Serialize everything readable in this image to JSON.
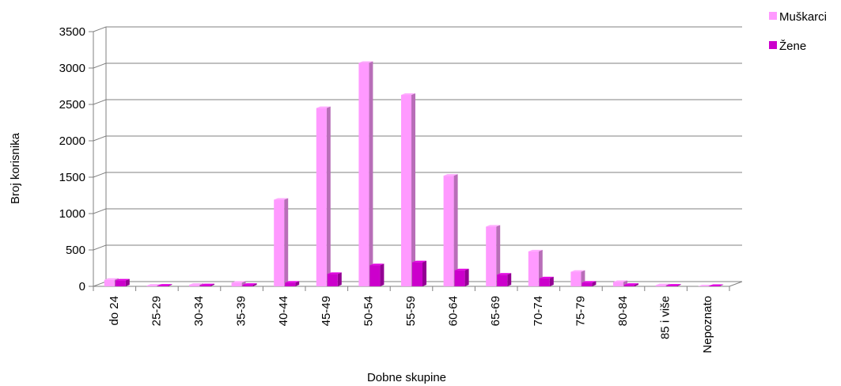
{
  "chart_data": {
    "type": "bar",
    "xlabel": "Dobne skupine",
    "ylabel": "Broj korisnika",
    "ylim": [
      0,
      3500
    ],
    "yticks": [
      0,
      500,
      1000,
      1500,
      2000,
      2500,
      3000,
      3500
    ],
    "grid": true,
    "legend_position": "top-right",
    "categories": [
      "do 24",
      "25-29",
      "30-34",
      "35-39",
      "40-44",
      "45-49",
      "50-54",
      "55-59",
      "60-64",
      "65-69",
      "70-74",
      "75-79",
      "80-84",
      "85 i više",
      "Nepoznato"
    ],
    "series": [
      {
        "name": "Muškarci",
        "color": "#ff99ff",
        "values": [
          90,
          10,
          20,
          50,
          1190,
          2450,
          3070,
          2630,
          1520,
          820,
          480,
          200,
          60,
          15,
          0
        ]
      },
      {
        "name": "Žene",
        "color": "#cc00cc",
        "values": [
          80,
          10,
          15,
          20,
          50,
          170,
          290,
          330,
          220,
          160,
          110,
          50,
          20,
          10,
          5
        ]
      }
    ]
  }
}
